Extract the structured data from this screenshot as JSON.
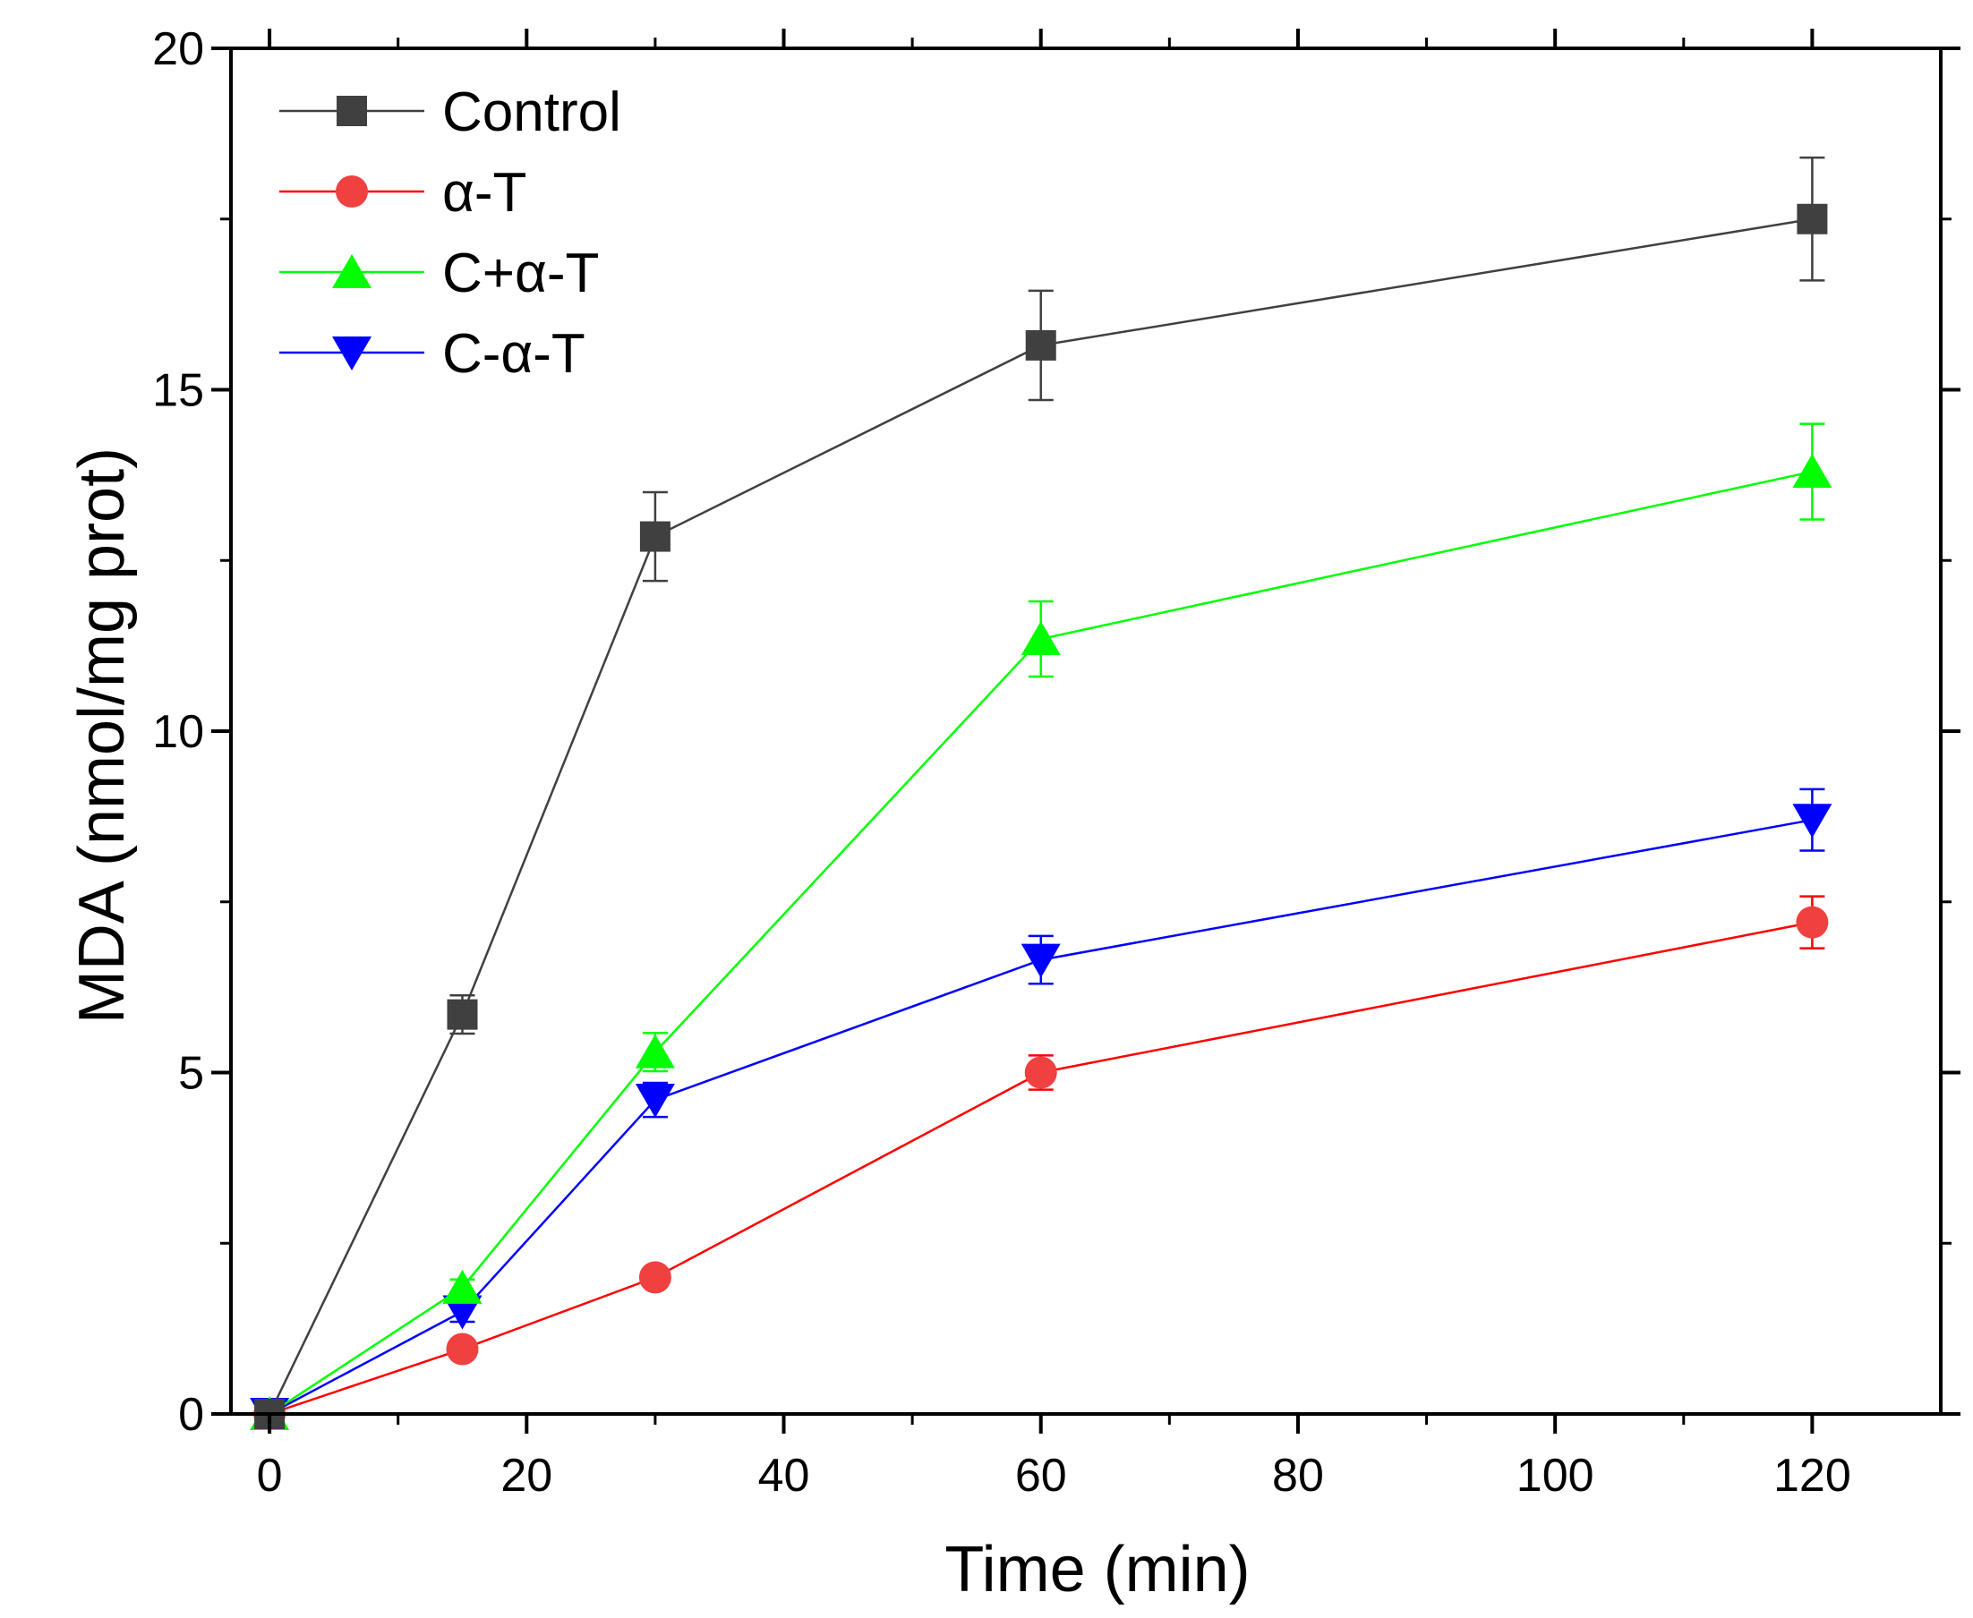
{
  "chart_data": {
    "type": "line",
    "title": "",
    "xlabel": "Time (min)",
    "ylabel": "MDA (nmol/mg prot)",
    "xlim": [
      -3,
      130
    ],
    "ylim": [
      0,
      20
    ],
    "xticks": [
      0,
      20,
      40,
      60,
      80,
      100,
      120
    ],
    "yticks": [
      0,
      5,
      10,
      15,
      20
    ],
    "x_minor_step": 10,
    "y_minor_step": 2.5,
    "x": [
      0,
      15,
      30,
      60,
      120
    ],
    "legend_position": "top-left",
    "grid": false,
    "series": [
      {
        "name": "Control",
        "color": "#404040",
        "marker": "square",
        "values": [
          0,
          5.85,
          12.85,
          15.65,
          17.5
        ],
        "errors": [
          0,
          0.28,
          0.65,
          0.8,
          0.9
        ]
      },
      {
        "name": "α-T",
        "color": "#f04040",
        "line_color": "#ff0000",
        "marker": "circle",
        "values": [
          0,
          0.95,
          2.0,
          5.0,
          7.2
        ],
        "errors": [
          0,
          0.08,
          0.1,
          0.25,
          0.38
        ]
      },
      {
        "name": "C+α-T",
        "color": "#00ff00",
        "marker": "triangle-up",
        "values": [
          0,
          1.85,
          5.3,
          11.35,
          13.8
        ],
        "errors": [
          0,
          0.12,
          0.28,
          0.55,
          0.7
        ]
      },
      {
        "name": "C-α-T",
        "color": "#0000ff",
        "marker": "triangle-down",
        "values": [
          0,
          1.5,
          4.6,
          6.65,
          8.7
        ],
        "errors": [
          0,
          0.15,
          0.25,
          0.35,
          0.45
        ]
      }
    ]
  }
}
